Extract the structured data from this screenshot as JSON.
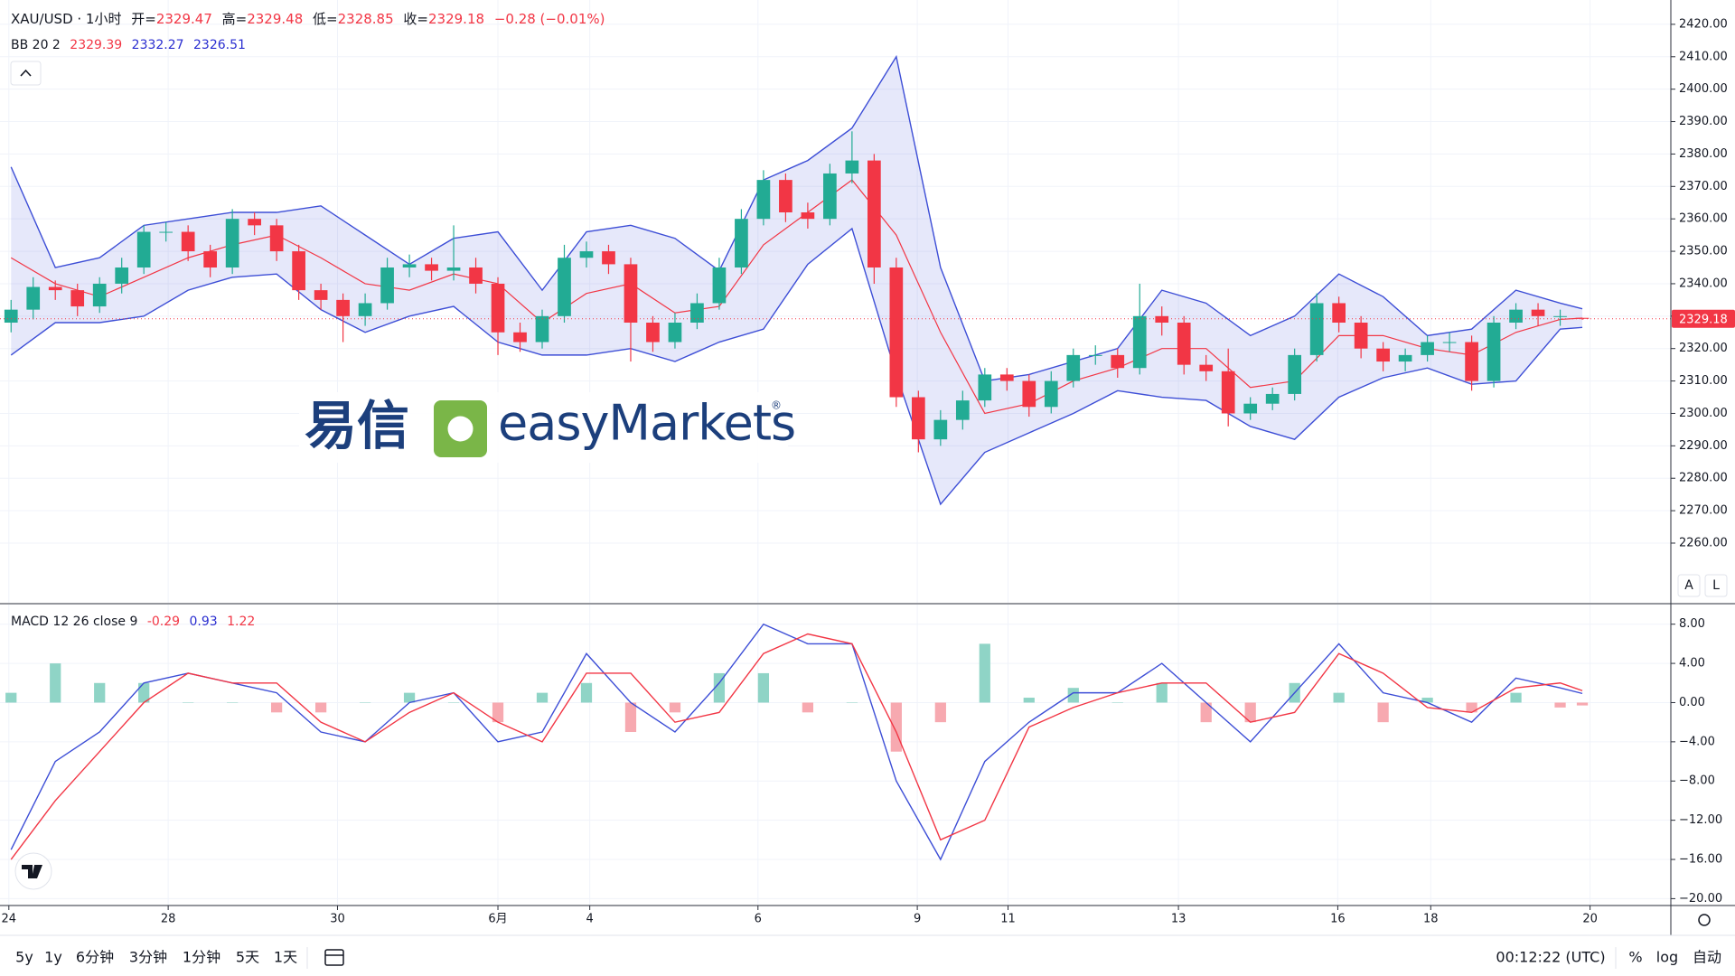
{
  "header": {
    "symbol": "XAU/USD · 1小时",
    "open_label": "开=",
    "high_label": "高=",
    "low_label": "低=",
    "close_label": "收=",
    "change": "−0.28 (−0.01%)",
    "bb_label": "BB 20 2",
    "macd_label": "MACD 12 26 close 9"
  },
  "watermark": {
    "cn": "易信",
    "en": "easyMarkets",
    "mark": "®"
  },
  "price_axis_buttons": [
    "A",
    "L"
  ],
  "toolbar": {
    "ranges": [
      "5y",
      "1y",
      "6分钟",
      "3分钟",
      "1分钟",
      "5天",
      "1天"
    ],
    "time": "00:12:22 (UTC)",
    "percent": "%",
    "log": "log",
    "auto": "自动"
  },
  "chart_data": [
    {
      "type": "candlestick",
      "up_color": "#22ab94",
      "down_color": "#f23645",
      "xlim": [
        -0.5,
        75
      ],
      "ylim": [
        2241.6,
        2427.5
      ],
      "xticks": [
        {
          "value": -0.1,
          "label": "24"
        },
        {
          "value": 7.1,
          "label": "28"
        },
        {
          "value": 14.75,
          "label": "30"
        },
        {
          "value": 22,
          "label": "6月"
        },
        {
          "value": 26.15,
          "label": "4"
        },
        {
          "value": 33.75,
          "label": "6"
        },
        {
          "value": 40.95,
          "label": "9"
        },
        {
          "value": 45.05,
          "label": "11"
        },
        {
          "value": 52.75,
          "label": "13"
        },
        {
          "value": 59.95,
          "label": "16"
        },
        {
          "value": 64.15,
          "label": "18"
        },
        {
          "value": 71.35,
          "label": "20"
        }
      ],
      "yticks": [
        {
          "value": 2260,
          "label": "2260.00"
        },
        {
          "value": 2270,
          "label": "2270.00"
        },
        {
          "value": 2280,
          "label": "2280.00"
        },
        {
          "value": 2290,
          "label": "2290.00"
        },
        {
          "value": 2300,
          "label": "2300.00"
        },
        {
          "value": 2310,
          "label": "2310.00"
        },
        {
          "value": 2320,
          "label": "2320.00"
        },
        {
          "value": 2330,
          "label": "2330.00"
        },
        {
          "value": 2340,
          "label": "2340.00"
        },
        {
          "value": 2350,
          "label": "2350.00"
        },
        {
          "value": 2360,
          "label": "2360.00"
        },
        {
          "value": 2370,
          "label": "2370.00"
        },
        {
          "value": 2380,
          "label": "2380.00"
        },
        {
          "value": 2390,
          "label": "2390.00"
        },
        {
          "value": 2400,
          "label": "2400.00"
        },
        {
          "value": 2410,
          "label": "2410.00"
        },
        {
          "value": 2420,
          "label": "2420.00"
        }
      ],
      "open": [
        2328,
        2332,
        2339,
        2338,
        2333,
        2340,
        2345,
        2356,
        2356,
        2350,
        2345,
        2360,
        2358,
        2350,
        2338,
        2335,
        2330,
        2334,
        2345,
        2346,
        2344,
        2345,
        2340,
        2325,
        2322,
        2330,
        2348,
        2350,
        2346,
        2328,
        2322,
        2328,
        2334,
        2345,
        2360,
        2372,
        2362,
        2360,
        2374,
        2378,
        2345,
        2305,
        2292,
        2298,
        2304,
        2312,
        2310,
        2302,
        2310,
        2318,
        2318,
        2314,
        2330,
        2328,
        2315,
        2313,
        2300,
        2303,
        2306,
        2318,
        2334,
        2328,
        2320,
        2316,
        2318,
        2322,
        2322,
        2310,
        2328,
        2332,
        2330,
        2329.47
      ],
      "high": [
        2335,
        2342,
        2341,
        2340,
        2342,
        2348,
        2358,
        2359,
        2358,
        2352,
        2363,
        2362,
        2360,
        2352,
        2340,
        2337,
        2337,
        2348,
        2349,
        2348,
        2358,
        2348,
        2342,
        2328,
        2332,
        2352,
        2353,
        2352,
        2348,
        2330,
        2331,
        2337,
        2348,
        2363,
        2375,
        2374,
        2365,
        2377,
        2387,
        2380,
        2348,
        2307,
        2301,
        2307,
        2314,
        2314,
        2312,
        2313,
        2320,
        2321,
        2320,
        2340,
        2333,
        2330,
        2318,
        2320,
        2305,
        2308,
        2320,
        2337,
        2336,
        2330,
        2322,
        2320,
        2324,
        2325,
        2324,
        2330,
        2334,
        2334,
        2332,
        2329.48
      ],
      "low": [
        2325,
        2329,
        2335,
        2330,
        2331,
        2337,
        2343,
        2353,
        2347,
        2342,
        2343,
        2355,
        2347,
        2335,
        2332,
        2322,
        2327,
        2332,
        2342,
        2341,
        2341,
        2337,
        2318,
        2319,
        2320,
        2328,
        2345,
        2343,
        2316,
        2319,
        2320,
        2326,
        2332,
        2343,
        2358,
        2359,
        2357,
        2358,
        2371,
        2340,
        2302,
        2288,
        2290,
        2295,
        2302,
        2307,
        2299,
        2300,
        2308,
        2315,
        2311,
        2312,
        2324,
        2312,
        2310,
        2296,
        2298,
        2301,
        2304,
        2316,
        2325,
        2317,
        2313,
        2313,
        2316,
        2319,
        2307,
        2308,
        2326,
        2327,
        2327,
        2328.85
      ],
      "close": [
        2332,
        2339,
        2338,
        2333,
        2340,
        2345,
        2356,
        2356,
        2350,
        2345,
        2360,
        2358,
        2350,
        2338,
        2335,
        2330,
        2334,
        2345,
        2346,
        2344,
        2345,
        2340,
        2325,
        2322,
        2330,
        2348,
        2350,
        2346,
        2328,
        2322,
        2328,
        2334,
        2345,
        2360,
        2372,
        2362,
        2360,
        2374,
        2378,
        2345,
        2305,
        2292,
        2298,
        2304,
        2312,
        2310,
        2302,
        2310,
        2318,
        2318,
        2314,
        2330,
        2328,
        2315,
        2313,
        2300,
        2303,
        2306,
        2318,
        2334,
        2328,
        2320,
        2316,
        2318,
        2322,
        2322,
        2310,
        2328,
        2332,
        2330,
        2330,
        2329.18
      ],
      "bands": {
        "band_color": "#3d4ed6",
        "basis_color": "#f23645",
        "x": [
          0,
          2,
          4,
          6,
          8,
          10,
          12,
          14,
          16,
          18,
          20,
          22,
          24,
          26,
          28,
          30,
          32,
          34,
          36,
          38,
          40,
          42,
          44,
          46,
          48,
          50,
          52,
          54,
          56,
          58,
          60,
          62,
          64,
          66,
          68,
          70,
          71
        ],
        "upper": [
          2376,
          2345,
          2348,
          2358,
          2360,
          2362,
          2362,
          2364,
          2355,
          2346,
          2354,
          2356,
          2338,
          2356,
          2358,
          2354,
          2344,
          2372,
          2378,
          2388,
          2410,
          2345,
          2310,
          2312,
          2316,
          2320,
          2338,
          2334,
          2324,
          2330,
          2343,
          2336,
          2324,
          2326,
          2338,
          2334,
          2332.27
        ],
        "basis": [
          2348,
          2340,
          2336,
          2342,
          2348,
          2352,
          2355,
          2348,
          2340,
          2338,
          2343,
          2340,
          2328,
          2337,
          2340,
          2331,
          2333,
          2352,
          2362,
          2372,
          2355,
          2325,
          2300,
          2303,
          2310,
          2314,
          2320,
          2320,
          2308,
          2310,
          2324,
          2324,
          2320,
          2318,
          2325,
          2329,
          2329.39
        ],
        "lower": [
          2318,
          2328,
          2328,
          2330,
          2338,
          2342,
          2343,
          2332,
          2325,
          2330,
          2333,
          2322,
          2318,
          2318,
          2320,
          2316,
          2322,
          2326,
          2346,
          2357,
          2312,
          2272,
          2288,
          2294,
          2300,
          2307,
          2305,
          2304,
          2296,
          2292,
          2305,
          2311,
          2314,
          2309,
          2310,
          2326,
          2326.51
        ]
      }
    },
    {
      "type": "macd",
      "xlim": [
        -0.5,
        75
      ],
      "ylim": [
        -20.7,
        10.0
      ],
      "xticks": [
        {
          "value": -0.1,
          "label": "24"
        },
        {
          "value": 7.1,
          "label": "28"
        },
        {
          "value": 14.75,
          "label": "30"
        },
        {
          "value": 22,
          "label": "6月"
        },
        {
          "value": 26.15,
          "label": "4"
        },
        {
          "value": 33.75,
          "label": "6"
        },
        {
          "value": 40.95,
          "label": "9"
        },
        {
          "value": 45.05,
          "label": "11"
        },
        {
          "value": 52.75,
          "label": "13"
        },
        {
          "value": 59.95,
          "label": "16"
        },
        {
          "value": 64.15,
          "label": "18"
        },
        {
          "value": 71.35,
          "label": "20"
        }
      ],
      "yticks": [
        {
          "value": 8,
          "label": "8.00"
        },
        {
          "value": 4,
          "label": "4.00"
        },
        {
          "value": 0,
          "label": "0.00"
        },
        {
          "value": -4,
          "label": "−4.00"
        },
        {
          "value": -8,
          "label": "−8.00"
        },
        {
          "value": -12,
          "label": "−12.00"
        },
        {
          "value": -16,
          "label": "−16.00"
        },
        {
          "value": -20,
          "label": "−20.00"
        }
      ],
      "x": [
        0,
        2,
        4,
        6,
        8,
        10,
        12,
        14,
        16,
        18,
        20,
        22,
        24,
        26,
        28,
        30,
        32,
        34,
        36,
        38,
        40,
        42,
        44,
        46,
        48,
        50,
        52,
        54,
        56,
        58,
        60,
        62,
        64,
        66,
        68,
        70,
        71
      ],
      "hist_up_color": "#8fd4c6",
      "hist_down_color": "#f7a9b0",
      "hist": [
        1,
        4,
        2,
        2,
        0,
        0,
        -1,
        -1,
        0,
        1,
        0,
        -2,
        1,
        2,
        -3,
        -1,
        3,
        3,
        -1,
        0,
        -5,
        -2,
        6,
        0.5,
        1.5,
        0,
        2,
        -2,
        -2,
        2,
        1,
        -2,
        0.5,
        -1,
        1,
        -0.5,
        -0.29
      ],
      "series": [
        {
          "name": "MACD",
          "color": "#3d4ed6",
          "values": [
            -15,
            -6,
            -3,
            2,
            3,
            2,
            1,
            -3,
            -4,
            0,
            1,
            -4,
            -3,
            5,
            0,
            -3,
            2,
            8,
            6,
            6,
            -8,
            -16,
            -6,
            -2,
            1,
            1,
            4,
            0,
            -4,
            1,
            6,
            1,
            0,
            -2,
            2.5,
            1.5,
            0.93
          ]
        },
        {
          "name": "Signal",
          "color": "#f23645",
          "values": [
            -16,
            -10,
            -5,
            0,
            3,
            2,
            2,
            -2,
            -4,
            -1,
            1,
            -2,
            -4,
            3,
            3,
            -2,
            -1,
            5,
            7,
            6,
            -3,
            -14,
            -12,
            -2.5,
            -0.5,
            1,
            2,
            2,
            -2,
            -1,
            5,
            3,
            -0.5,
            -1,
            1.5,
            2,
            1.22
          ]
        }
      ]
    }
  ]
}
